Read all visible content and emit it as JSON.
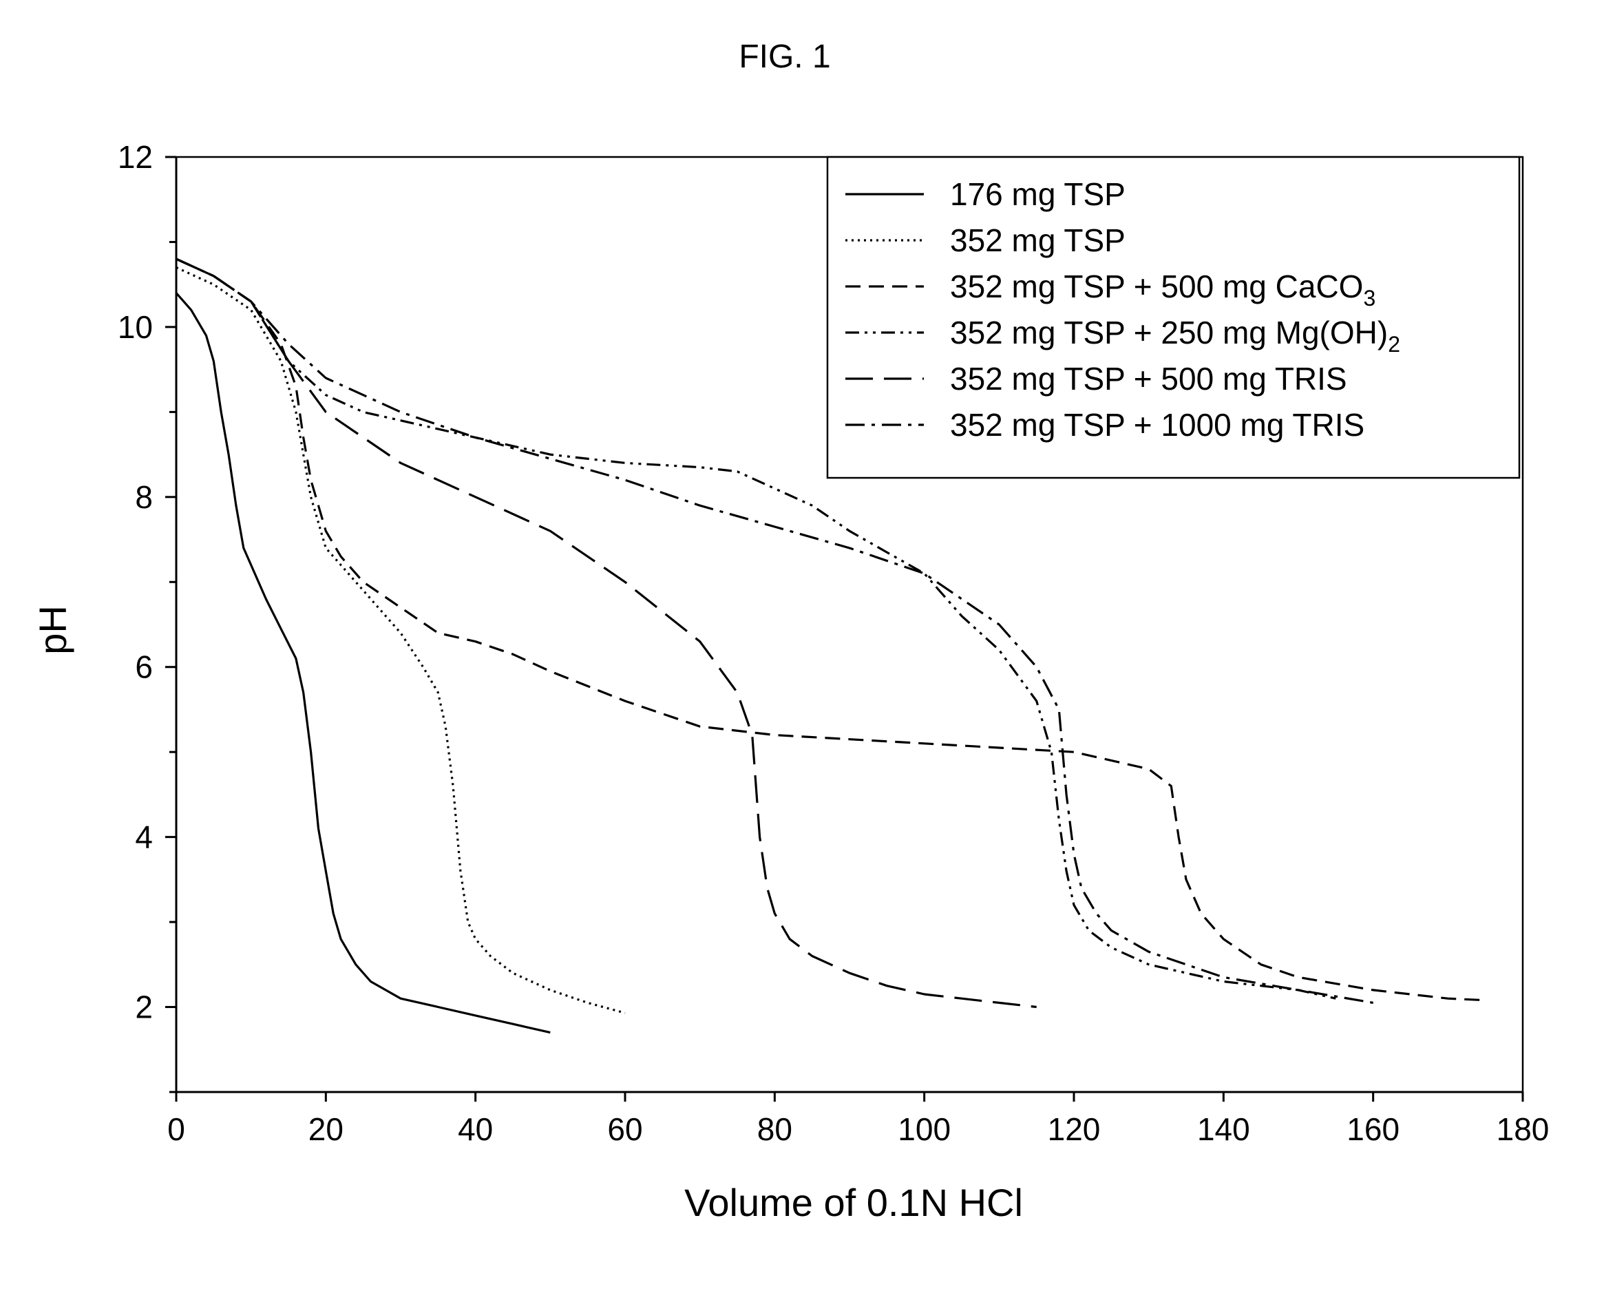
{
  "figure_label": "FIG. 1",
  "chart_data": {
    "type": "line",
    "title": "FIG. 1",
    "xlabel": "Volume of 0.1N HCl",
    "ylabel": "pH",
    "xlim": [
      0,
      180
    ],
    "ylim": [
      1,
      12
    ],
    "x_ticks": [
      0,
      20,
      40,
      60,
      80,
      100,
      120,
      140,
      160,
      180
    ],
    "y_ticks": [
      2,
      4,
      6,
      8,
      10,
      12
    ],
    "grid": false,
    "legend_position": "top-right",
    "series": [
      {
        "name": "176 mg TSP",
        "style": "solid",
        "x": [
          0,
          2,
          4,
          5,
          6,
          7,
          8,
          9,
          10,
          12,
          14,
          16,
          17,
          18,
          19,
          20,
          21,
          22,
          24,
          26,
          28,
          30,
          35,
          40,
          45,
          50
        ],
        "y": [
          10.4,
          10.2,
          9.9,
          9.6,
          9.0,
          8.5,
          7.9,
          7.4,
          7.2,
          6.8,
          6.45,
          6.1,
          5.7,
          5.0,
          4.1,
          3.6,
          3.1,
          2.8,
          2.5,
          2.3,
          2.2,
          2.1,
          2.0,
          1.9,
          1.8,
          1.7
        ]
      },
      {
        "name": "352 mg TSP",
        "style": "dotted",
        "x": [
          0,
          5,
          10,
          14,
          16,
          17,
          18,
          20,
          22,
          25,
          30,
          33,
          35,
          36,
          37,
          38,
          39,
          40,
          42,
          45,
          50,
          55,
          60
        ],
        "y": [
          10.7,
          10.5,
          10.2,
          9.6,
          9.0,
          8.5,
          8.0,
          7.4,
          7.2,
          6.9,
          6.4,
          6.0,
          5.7,
          5.3,
          4.6,
          3.6,
          3.0,
          2.8,
          2.6,
          2.4,
          2.2,
          2.05,
          1.93
        ]
      },
      {
        "name": "352 mg TSP + 500 mg CaCO3",
        "style": "dashed",
        "x": [
          0,
          5,
          10,
          14,
          16,
          17,
          18,
          19,
          20,
          22,
          25,
          30,
          35,
          40,
          45,
          50,
          60,
          70,
          80,
          100,
          120,
          130,
          133,
          134,
          135,
          137,
          140,
          145,
          150,
          160,
          170,
          175
        ],
        "y": [
          10.8,
          10.6,
          10.3,
          9.8,
          9.3,
          8.7,
          8.2,
          7.9,
          7.6,
          7.3,
          7.0,
          6.7,
          6.4,
          6.3,
          6.15,
          5.95,
          5.6,
          5.3,
          5.2,
          5.1,
          5.0,
          4.8,
          4.6,
          4.0,
          3.5,
          3.1,
          2.8,
          2.5,
          2.35,
          2.2,
          2.1,
          2.08
        ]
      },
      {
        "name": "352 mg TSP + 250 mg Mg(OH)2",
        "style": "dash-dot-dot",
        "x": [
          0,
          5,
          10,
          15,
          20,
          25,
          30,
          40,
          50,
          60,
          70,
          75,
          80,
          85,
          90,
          95,
          100,
          105,
          110,
          115,
          117,
          118,
          119,
          120,
          122,
          125,
          130,
          140,
          150,
          155
        ],
        "y": [
          10.8,
          10.6,
          10.3,
          9.6,
          9.2,
          9.0,
          8.9,
          8.7,
          8.5,
          8.4,
          8.35,
          8.3,
          8.1,
          7.9,
          7.6,
          7.35,
          7.1,
          6.6,
          6.2,
          5.6,
          5.0,
          4.2,
          3.6,
          3.2,
          2.9,
          2.7,
          2.5,
          2.3,
          2.2,
          2.1
        ]
      },
      {
        "name": "352 mg TSP + 500 mg TRIS",
        "style": "long-dash",
        "x": [
          0,
          5,
          10,
          15,
          20,
          30,
          40,
          50,
          60,
          70,
          75,
          77,
          78,
          79,
          80,
          82,
          85,
          90,
          95,
          100,
          105,
          110,
          115
        ],
        "y": [
          10.8,
          10.6,
          10.3,
          9.6,
          9.0,
          8.4,
          8.0,
          7.6,
          7.0,
          6.3,
          5.7,
          5.2,
          4.0,
          3.4,
          3.1,
          2.8,
          2.6,
          2.4,
          2.25,
          2.15,
          2.1,
          2.05,
          2.0
        ]
      },
      {
        "name": "352 mg TSP + 1000 mg TRIS",
        "style": "dash-dot",
        "x": [
          0,
          5,
          10,
          15,
          20,
          30,
          40,
          50,
          60,
          70,
          80,
          90,
          100,
          110,
          115,
          118,
          119,
          120,
          121,
          123,
          125,
          130,
          140,
          150,
          160
        ],
        "y": [
          10.8,
          10.6,
          10.3,
          9.8,
          9.4,
          9.0,
          8.7,
          8.45,
          8.2,
          7.9,
          7.65,
          7.4,
          7.1,
          6.5,
          6.0,
          5.5,
          4.5,
          3.8,
          3.4,
          3.1,
          2.9,
          2.65,
          2.35,
          2.2,
          2.05
        ]
      }
    ]
  },
  "legend": {
    "entries": [
      {
        "prefix": "176 mg TSP",
        "base": "",
        "sub": ""
      },
      {
        "prefix": "352 mg TSP",
        "base": "",
        "sub": ""
      },
      {
        "prefix": "352 mg TSP + 500 mg CaCO",
        "base": "",
        "sub": "3"
      },
      {
        "prefix": "352 mg TSP + 250 mg Mg(OH)",
        "base": "",
        "sub": "2"
      },
      {
        "prefix": "352 mg TSP + 500 mg TRIS",
        "base": "",
        "sub": ""
      },
      {
        "prefix": "352 mg TSP + 1000 mg TRIS",
        "base": "",
        "sub": ""
      }
    ]
  }
}
